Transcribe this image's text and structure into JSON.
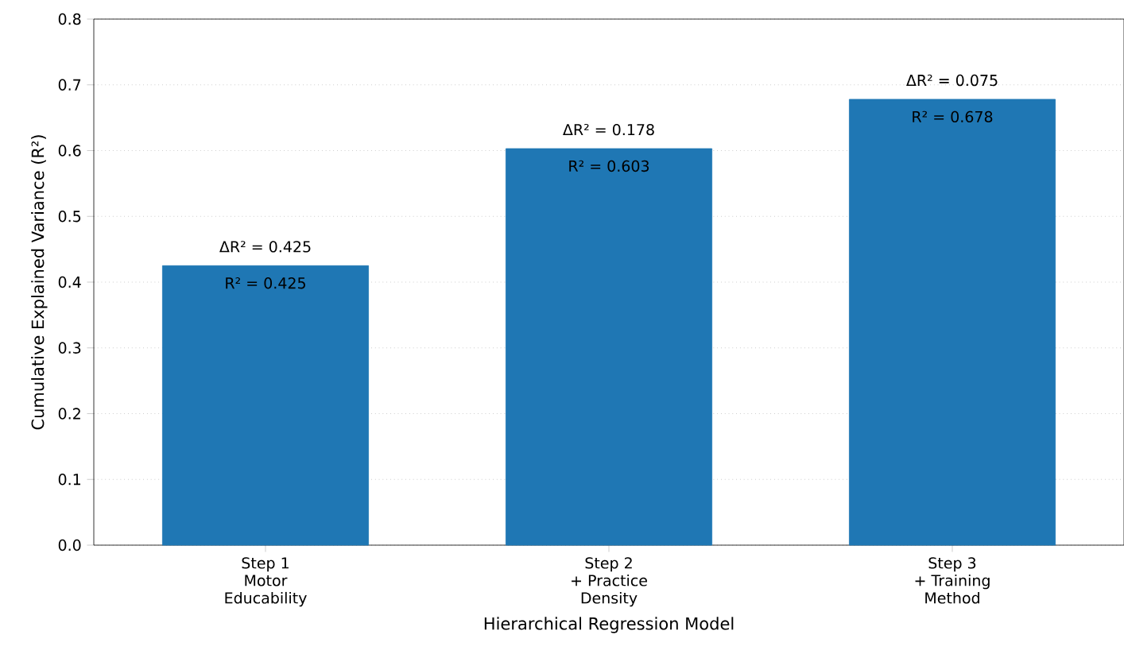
{
  "chart_data": {
    "type": "bar",
    "xlabel": "Hierarchical Regression Model",
    "ylabel": "Cumulative Explained Variance (R²)",
    "categories": [
      "Step 1\nMotor\nEducability",
      "Step 2\n+ Practice\nDensity",
      "Step 3\n+ Training\nMethod"
    ],
    "values": [
      0.425,
      0.603,
      0.678
    ],
    "color": "#1f77b4",
    "value_labels": [
      "R² = 0.425",
      "R² = 0.603",
      "R² = 0.678"
    ],
    "annotations": [
      {
        "text": "ΔR² = 0.425",
        "x": "Step 1\nMotor\nEducability",
        "y": 0.425
      },
      {
        "text": "ΔR² = 0.178",
        "x": "Step 2\n+ Practice\nDensity",
        "y": 0.603
      },
      {
        "text": "ΔR² = 0.075",
        "x": "Step 3\n+ Training\nMethod",
        "y": 0.678
      }
    ],
    "ylim": [
      0,
      0.8
    ],
    "yticks": [
      {
        "value": 0,
        "label": "0.0"
      },
      0.1,
      0.2,
      0.3,
      0.4,
      0.5,
      0.6,
      0.7,
      0.8
    ],
    "grid": "y"
  }
}
